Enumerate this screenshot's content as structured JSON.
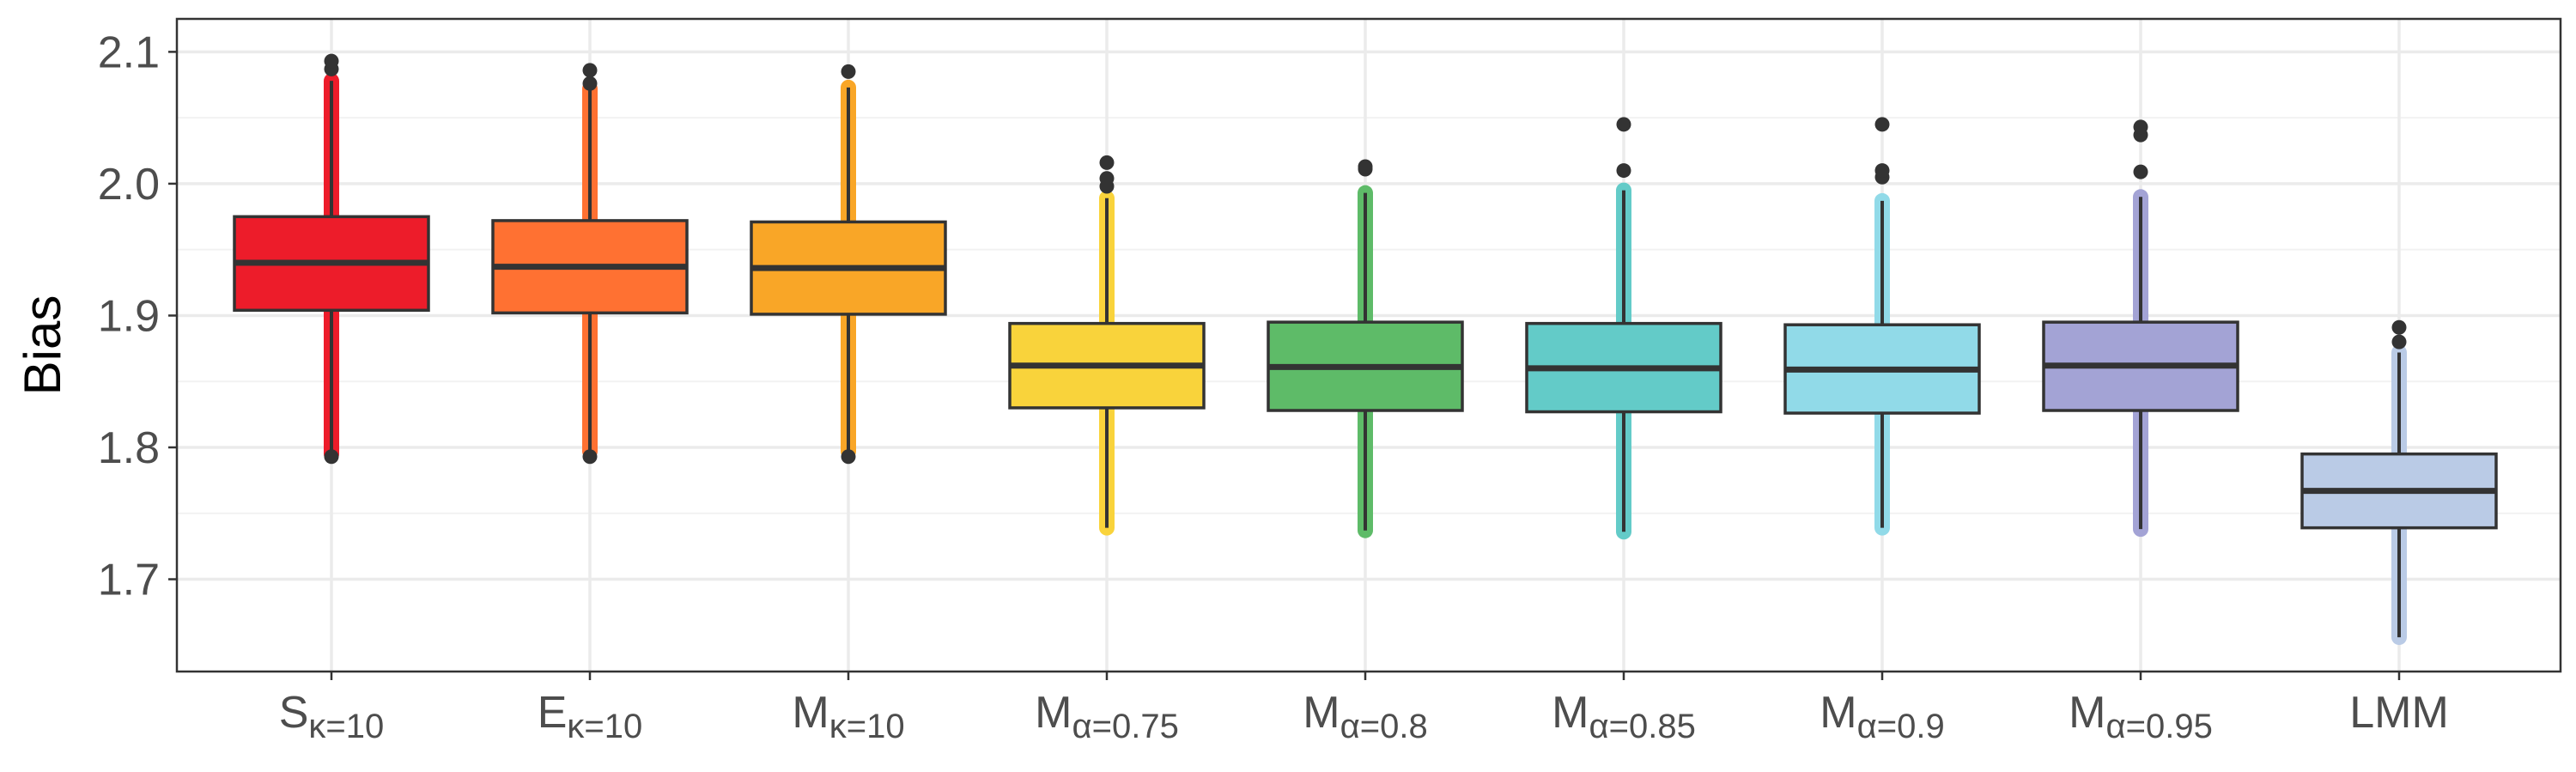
{
  "chart_data": {
    "type": "box",
    "ylabel": "Bias",
    "xlabel": "",
    "title": "",
    "ylim": [
      1.63,
      2.125
    ],
    "y_ticks": [
      1.7,
      1.8,
      1.9,
      2.0,
      2.1
    ],
    "y_tick_labels": [
      "1.7",
      "1.8",
      "1.9",
      "2.0",
      "2.1"
    ],
    "grid": true,
    "theme": "bw",
    "categories": [
      {
        "base": "S",
        "sub": "κ=10",
        "label": "Sκ=10",
        "color": "#ED1C2A"
      },
      {
        "base": "E",
        "sub": "κ=10",
        "label": "Eκ=10",
        "color": "#FF7132"
      },
      {
        "base": "M",
        "sub": "κ=10",
        "label": "Mκ=10",
        "color": "#F9A627"
      },
      {
        "base": "M",
        "sub": "α=0.75",
        "label": "Mα=0.75",
        "color": "#F9D33B"
      },
      {
        "base": "M",
        "sub": "α=0.8",
        "label": "Mα=0.8",
        "color": "#5EBB68"
      },
      {
        "base": "M",
        "sub": "α=0.85",
        "label": "Mα=0.85",
        "color": "#63CBC8"
      },
      {
        "base": "M",
        "sub": "α=0.9",
        "label": "Mα=0.9",
        "color": "#91DAE8"
      },
      {
        "base": "M",
        "sub": "α=0.95",
        "label": "Mα=0.95",
        "color": "#A3A3D5"
      },
      {
        "base": "LMM",
        "sub": "",
        "label": "LMM",
        "color": "#BACBE6"
      }
    ],
    "boxes": [
      {
        "min": 1.795,
        "q1": 1.904,
        "median": 1.94,
        "q3": 1.975,
        "max": 2.078,
        "outliers": [
          1.793,
          2.087,
          2.093
        ]
      },
      {
        "min": 1.797,
        "q1": 1.902,
        "median": 1.937,
        "q3": 1.972,
        "max": 2.072,
        "outliers": [
          1.793,
          2.076,
          2.086
        ]
      },
      {
        "min": 1.797,
        "q1": 1.901,
        "median": 1.936,
        "q3": 1.971,
        "max": 2.073,
        "outliers": [
          1.793,
          2.085
        ]
      },
      {
        "min": 1.739,
        "q1": 1.83,
        "median": 1.862,
        "q3": 1.894,
        "max": 1.989,
        "outliers": [
          1.998,
          2.004,
          2.016
        ]
      },
      {
        "min": 1.737,
        "q1": 1.828,
        "median": 1.861,
        "q3": 1.895,
        "max": 1.993,
        "outliers": [
          2.011,
          2.013
        ]
      },
      {
        "min": 1.736,
        "q1": 1.827,
        "median": 1.86,
        "q3": 1.894,
        "max": 1.995,
        "outliers": [
          2.01,
          2.045
        ]
      },
      {
        "min": 1.739,
        "q1": 1.826,
        "median": 1.859,
        "q3": 1.893,
        "max": 1.987,
        "outliers": [
          2.005,
          2.01,
          2.045
        ]
      },
      {
        "min": 1.738,
        "q1": 1.828,
        "median": 1.862,
        "q3": 1.895,
        "max": 1.99,
        "outliers": [
          2.009,
          2.037,
          2.043
        ]
      },
      {
        "min": 1.656,
        "q1": 1.739,
        "median": 1.767,
        "q3": 1.795,
        "max": 1.872,
        "outliers": [
          1.88,
          1.891
        ]
      }
    ]
  }
}
